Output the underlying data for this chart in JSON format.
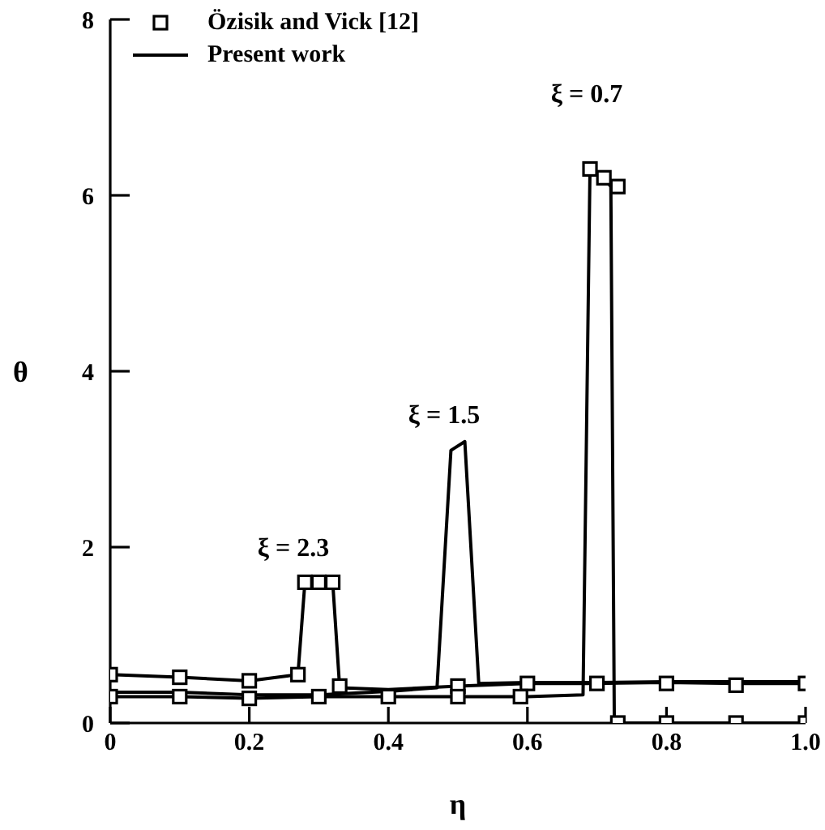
{
  "chart_data": {
    "type": "line",
    "xlabel": "η",
    "ylabel": "θ",
    "xlim": [
      0,
      1
    ],
    "ylim": [
      0,
      8
    ],
    "xticks": [
      0,
      0.2,
      0.4,
      0.6,
      0.8,
      {
        "value": 1,
        "label": "1.0"
      }
    ],
    "yticks": [
      0,
      2,
      4,
      6,
      8
    ],
    "grid": false,
    "legend": "top left",
    "series": [
      {
        "name": "Özisik and Vick [12]",
        "type": "scatter",
        "marker": "square",
        "color": "#000000",
        "x": [
          0,
          0.1,
          0.2,
          0.27,
          0.28,
          0.3,
          0.32,
          0.33,
          0.5,
          0.6,
          0.7,
          0,
          0.1,
          0.2,
          0.3,
          0.4,
          0.5,
          0.59,
          0.69,
          0.71,
          0.73,
          0.73,
          0.8,
          0.9,
          1.0,
          0.8,
          0.9,
          1.0
        ],
        "values": [
          0.55,
          0.52,
          0.48,
          0.55,
          1.6,
          1.6,
          1.6,
          0.42,
          0.42,
          0.45,
          0.45,
          0.3,
          0.3,
          0.28,
          0.3,
          0.3,
          0.3,
          0.3,
          6.3,
          6.2,
          6.1,
          0,
          0,
          0,
          0,
          0.45,
          0.43,
          0.45
        ]
      },
      {
        "name": "Present work",
        "marker": "none",
        "line_style": "solid",
        "color": "#000000",
        "x": [
          0,
          0.1,
          0.2,
          0.27,
          0.28,
          0.32,
          0.33,
          0.4,
          0.5,
          0.6,
          0.7,
          0.8,
          0.9,
          1.0,
          0,
          0.1,
          0.2,
          0.3,
          0.4,
          0.47,
          0.49,
          0.51,
          0.53,
          0.6,
          0.7,
          0.8,
          0.9,
          1.0,
          0,
          0.1,
          0.2,
          0.3,
          0.4,
          0.5,
          0.6,
          0.68,
          0.69,
          0.71,
          0.72,
          0.725,
          0.8,
          0.9,
          1.0
        ],
        "values": [
          0.55,
          0.52,
          0.48,
          0.55,
          1.6,
          1.6,
          0.4,
          0.38,
          0.42,
          0.45,
          0.45,
          0.46,
          0.45,
          0.45,
          0.35,
          0.35,
          0.32,
          0.32,
          0.36,
          0.4,
          3.1,
          3.2,
          0.45,
          0.46,
          0.46,
          0.47,
          0.47,
          0.47,
          0.3,
          0.3,
          0.28,
          0.3,
          0.3,
          0.3,
          0.3,
          0.32,
          6.3,
          6.2,
          6.1,
          0,
          0,
          0,
          0
        ]
      }
    ],
    "annotations": [
      "ξ = 2.3",
      "ξ = 1.5",
      "ξ = 0.7"
    ]
  }
}
